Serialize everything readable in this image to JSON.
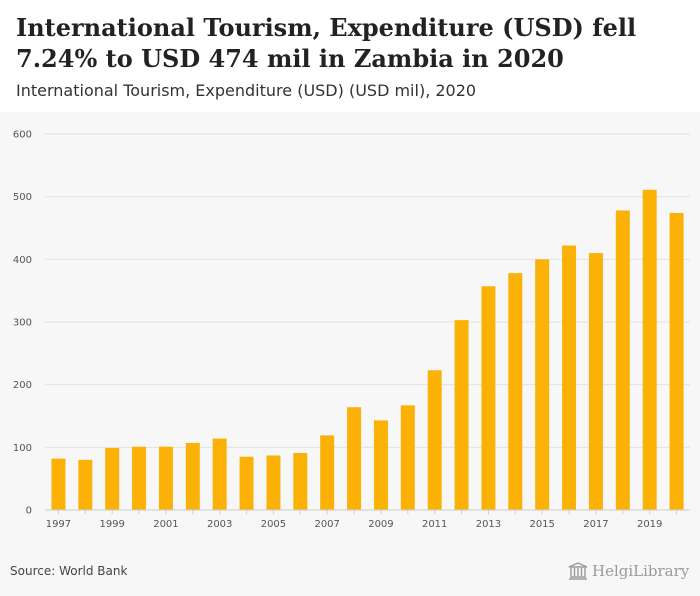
{
  "header": {
    "title": "International Tourism, Expenditure (USD) fell 7.24% to USD 474 mil in Zambia in 2020",
    "subtitle": "International Tourism, Expenditure (USD) (USD mil), 2020"
  },
  "footer": {
    "source": "Source: World Bank",
    "brand": "HelgiLibrary"
  },
  "colors": {
    "bar": "#fbb106",
    "grid": "#e2e2e2",
    "axis": "#cccccc"
  },
  "chart_data": {
    "type": "bar",
    "title": "International Tourism, Expenditure (USD) fell 7.24% to USD 474 mil in Zambia in 2020",
    "subtitle": "International Tourism, Expenditure (USD) (USD mil), 2020",
    "xlabel": "",
    "ylabel": "",
    "ylim": [
      0,
      600
    ],
    "yticks": [
      0,
      100,
      200,
      300,
      400,
      500,
      600
    ],
    "categories": [
      "1997",
      "1998",
      "1999",
      "2000",
      "2001",
      "2002",
      "2003",
      "2004",
      "2005",
      "2006",
      "2007",
      "2008",
      "2009",
      "2010",
      "2011",
      "2012",
      "2013",
      "2014",
      "2015",
      "2016",
      "2017",
      "2018",
      "2019",
      "2020"
    ],
    "xtick_labels": [
      "1997",
      "1999",
      "2001",
      "2003",
      "2005",
      "2007",
      "2009",
      "2011",
      "2013",
      "2015",
      "2017",
      "2019"
    ],
    "values": [
      82,
      80,
      99,
      101,
      101,
      107,
      114,
      85,
      87,
      91,
      119,
      164,
      143,
      167,
      223,
      303,
      357,
      378,
      400,
      422,
      410,
      478,
      511,
      474
    ],
    "grid": true,
    "legend": "none"
  }
}
